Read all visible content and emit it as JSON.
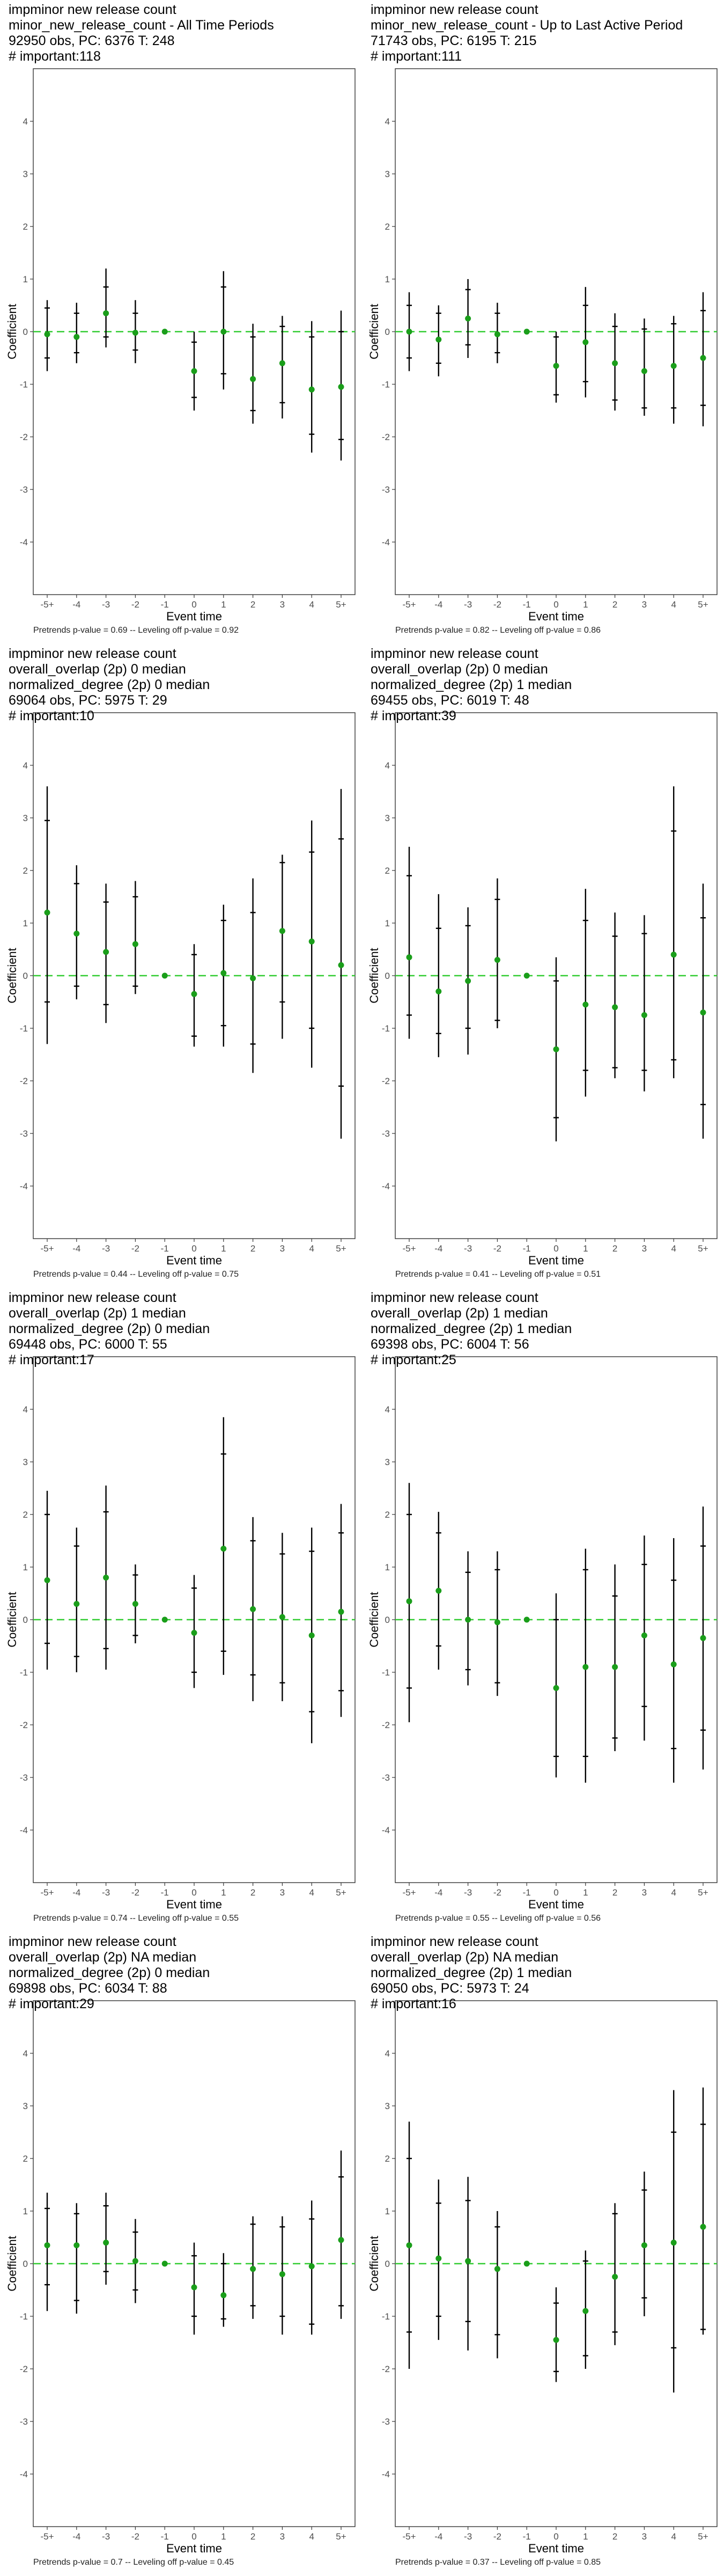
{
  "panels": [
    {
      "title_lines": [
        "impminor new release count",
        "minor_new_release_count - All Time Periods",
        "92950 obs, PC: 6376 T: 248",
        "# important:118"
      ],
      "pvalues": "Pretrends p-value = 0.69 -- Leveling off p-value = 0.92"
    },
    {
      "title_lines": [
        "impminor new release count",
        "minor_new_release_count - Up to Last Active Period",
        "71743 obs, PC: 6195 T: 215",
        "# important:111"
      ],
      "pvalues": "Pretrends p-value = 0.82 -- Leveling off p-value = 0.86"
    },
    {
      "title_lines": [
        "impminor new release count",
        "overall_overlap (2p) 0 median",
        "normalized_degree (2p) 0 median",
        "69064 obs, PC: 5975 T: 29",
        "# important:10"
      ],
      "pvalues": "Pretrends p-value = 0.44 -- Leveling off p-value = 0.75"
    },
    {
      "title_lines": [
        "impminor new release count",
        "overall_overlap (2p) 0 median",
        "normalized_degree (2p) 1 median",
        "69455 obs, PC: 6019 T: 48",
        "# important:39"
      ],
      "pvalues": "Pretrends p-value = 0.41 -- Leveling off p-value = 0.51"
    },
    {
      "title_lines": [
        "impminor new release count",
        "overall_overlap (2p) 1 median",
        "normalized_degree (2p) 0 median",
        "69448 obs, PC: 6000 T: 55",
        "# important:17"
      ],
      "pvalues": "Pretrends p-value = 0.74 -- Leveling off p-value = 0.55"
    },
    {
      "title_lines": [
        "impminor new release count",
        "overall_overlap (2p) 1 median",
        "normalized_degree (2p) 1 median",
        "69398 obs, PC: 6004 T: 56",
        "# important:25"
      ],
      "pvalues": "Pretrends p-value = 0.55 -- Leveling off p-value = 0.56"
    },
    {
      "title_lines": [
        "impminor new release count",
        "overall_overlap (2p) NA median",
        "normalized_degree (2p) 0 median",
        "69898 obs, PC: 6034 T: 88",
        "# important:29"
      ],
      "pvalues": "Pretrends p-value = 0.7 -- Leveling off p-value = 0.45"
    },
    {
      "title_lines": [
        "impminor new release count",
        "overall_overlap (2p) NA median",
        "normalized_degree (2p) 1 median",
        "69050 obs, PC: 5973 T: 24",
        "# important:16"
      ],
      "pvalues": "Pretrends p-value = 0.37 -- Leveling off p-value = 0.85"
    }
  ],
  "colors": {
    "point": "#1a9e1a",
    "zero_line": "#33cc33",
    "error_bar": "#000000",
    "panel_border": "#333333",
    "tick_text": "#4d4d4d"
  },
  "chart_data": [
    {
      "type": "scatter",
      "xlabel": "Event time",
      "ylabel": "Coefficient",
      "ylim": [
        -5,
        5
      ],
      "yticks": [
        -4,
        -3,
        -2,
        -1,
        0,
        1,
        2,
        3,
        4
      ],
      "categories": [
        "-5+",
        "-4",
        "-3",
        "-2",
        "-1",
        "0",
        "1",
        "2",
        "3",
        "4",
        "5+"
      ],
      "estimate": [
        -0.05,
        -0.1,
        0.35,
        -0.02,
        0.0,
        -0.75,
        0.0,
        -0.9,
        -0.6,
        -1.1,
        -1.05
      ],
      "ci95_low": [
        -0.75,
        -0.6,
        -0.3,
        -0.6,
        0.0,
        -1.5,
        -1.1,
        -1.75,
        -1.65,
        -2.3,
        -2.45
      ],
      "ci95_high": [
        0.6,
        0.55,
        1.2,
        0.6,
        0.0,
        0.0,
        1.15,
        0.15,
        0.3,
        0.2,
        0.4
      ],
      "ci90_low": [
        -0.5,
        -0.4,
        -0.1,
        -0.35,
        0.0,
        -1.25,
        -0.8,
        -1.5,
        -1.35,
        -1.95,
        -2.05
      ],
      "ci90_high": [
        0.45,
        0.35,
        0.85,
        0.35,
        0.0,
        -0.2,
        0.85,
        -0.1,
        0.1,
        -0.1,
        0.0
      ]
    },
    {
      "type": "scatter",
      "xlabel": "Event time",
      "ylabel": "Coefficient",
      "ylim": [
        -5,
        5
      ],
      "yticks": [
        -4,
        -3,
        -2,
        -1,
        0,
        1,
        2,
        3,
        4
      ],
      "categories": [
        "-5+",
        "-4",
        "-3",
        "-2",
        "-1",
        "0",
        "1",
        "2",
        "3",
        "4",
        "5+"
      ],
      "estimate": [
        0.0,
        -0.15,
        0.25,
        -0.05,
        0.0,
        -0.65,
        -0.2,
        -0.6,
        -0.75,
        -0.65,
        -0.5
      ],
      "ci95_low": [
        -0.75,
        -0.85,
        -0.5,
        -0.6,
        0.0,
        -1.35,
        -1.25,
        -1.5,
        -1.6,
        -1.75,
        -1.8
      ],
      "ci95_high": [
        0.75,
        0.5,
        1.0,
        0.55,
        0.0,
        0.0,
        0.85,
        0.35,
        0.25,
        0.3,
        0.75
      ],
      "ci90_low": [
        -0.5,
        -0.6,
        -0.25,
        -0.4,
        0.0,
        -1.2,
        -0.95,
        -1.3,
        -1.45,
        -1.45,
        -1.4
      ],
      "ci90_high": [
        0.5,
        0.35,
        0.8,
        0.35,
        0.0,
        -0.1,
        0.5,
        0.1,
        0.05,
        0.15,
        0.4
      ]
    },
    {
      "type": "scatter",
      "xlabel": "Event time",
      "ylabel": "Coefficient",
      "ylim": [
        -5,
        5
      ],
      "yticks": [
        -4,
        -3,
        -2,
        -1,
        0,
        1,
        2,
        3,
        4
      ],
      "categories": [
        "-5+",
        "-4",
        "-3",
        "-2",
        "-1",
        "0",
        "1",
        "2",
        "3",
        "4",
        "5+"
      ],
      "estimate": [
        1.2,
        0.8,
        0.45,
        0.6,
        0.0,
        -0.35,
        0.05,
        -0.05,
        0.85,
        0.65,
        0.2
      ],
      "ci95_low": [
        -1.3,
        -0.45,
        -0.9,
        -0.35,
        0.0,
        -1.35,
        -1.35,
        -1.85,
        -1.2,
        -1.75,
        -3.1
      ],
      "ci95_high": [
        3.6,
        2.1,
        1.75,
        1.8,
        0.0,
        0.6,
        1.35,
        1.85,
        2.3,
        2.95,
        3.55
      ],
      "ci90_low": [
        -0.5,
        -0.2,
        -0.55,
        -0.2,
        0.0,
        -1.15,
        -0.95,
        -1.3,
        -0.5,
        -1.0,
        -2.1
      ],
      "ci90_high": [
        2.95,
        1.75,
        1.4,
        1.5,
        0.0,
        0.4,
        1.05,
        1.2,
        2.15,
        2.35,
        2.6
      ]
    },
    {
      "type": "scatter",
      "xlabel": "Event time",
      "ylabel": "Coefficient",
      "ylim": [
        -5,
        5
      ],
      "yticks": [
        -4,
        -3,
        -2,
        -1,
        0,
        1,
        2,
        3,
        4
      ],
      "categories": [
        "-5+",
        "-4",
        "-3",
        "-2",
        "-1",
        "0",
        "1",
        "2",
        "3",
        "4",
        "5+"
      ],
      "estimate": [
        0.35,
        -0.3,
        -0.1,
        0.3,
        0.0,
        -1.4,
        -0.55,
        -0.6,
        -0.75,
        0.4,
        -0.7
      ],
      "ci95_low": [
        -1.2,
        -1.55,
        -1.5,
        -1.0,
        0.0,
        -3.15,
        -2.3,
        -1.95,
        -2.2,
        -1.95,
        -3.1
      ],
      "ci95_high": [
        2.45,
        1.55,
        1.3,
        1.85,
        0.0,
        0.35,
        1.65,
        1.2,
        1.15,
        3.6,
        1.75
      ],
      "ci90_low": [
        -0.75,
        -1.1,
        -1.0,
        -0.85,
        0.0,
        -2.7,
        -1.8,
        -1.75,
        -1.8,
        -1.6,
        -2.45
      ],
      "ci90_high": [
        1.9,
        0.9,
        0.95,
        1.45,
        0.0,
        -0.1,
        1.05,
        0.75,
        0.8,
        2.75,
        1.1
      ]
    },
    {
      "type": "scatter",
      "xlabel": "Event time",
      "ylabel": "Coefficient",
      "ylim": [
        -5,
        5
      ],
      "yticks": [
        -4,
        -3,
        -2,
        -1,
        0,
        1,
        2,
        3,
        4
      ],
      "categories": [
        "-5+",
        "-4",
        "-3",
        "-2",
        "-1",
        "0",
        "1",
        "2",
        "3",
        "4",
        "5+"
      ],
      "estimate": [
        0.75,
        0.3,
        0.8,
        0.3,
        0.0,
        -0.25,
        1.35,
        0.2,
        0.05,
        -0.3,
        0.15
      ],
      "ci95_low": [
        -0.95,
        -1.0,
        -0.95,
        -0.45,
        0.0,
        -1.3,
        -1.05,
        -1.55,
        -1.55,
        -2.35,
        -1.85
      ],
      "ci95_high": [
        2.45,
        1.75,
        2.55,
        1.05,
        0.0,
        0.85,
        3.85,
        1.95,
        1.65,
        1.75,
        2.2
      ],
      "ci90_low": [
        -0.45,
        -0.7,
        -0.55,
        -0.3,
        0.0,
        -1.0,
        -0.6,
        -1.05,
        -1.2,
        -1.75,
        -1.35
      ],
      "ci90_high": [
        2.0,
        1.4,
        2.05,
        0.85,
        0.0,
        0.6,
        3.15,
        1.5,
        1.25,
        1.3,
        1.65
      ]
    },
    {
      "type": "scatter",
      "xlabel": "Event time",
      "ylabel": "Coefficient",
      "ylim": [
        -5,
        5
      ],
      "yticks": [
        -4,
        -3,
        -2,
        -1,
        0,
        1,
        2,
        3,
        4
      ],
      "categories": [
        "-5+",
        "-4",
        "-3",
        "-2",
        "-1",
        "0",
        "1",
        "2",
        "3",
        "4",
        "5+"
      ],
      "estimate": [
        0.35,
        0.55,
        0.0,
        -0.05,
        0.0,
        -1.3,
        -0.9,
        -0.9,
        -0.3,
        -0.85,
        -0.35
      ],
      "ci95_low": [
        -1.95,
        -0.95,
        -1.25,
        -1.45,
        0.0,
        -3.0,
        -3.1,
        -2.5,
        -2.3,
        -3.1,
        -2.85
      ],
      "ci95_high": [
        2.6,
        2.05,
        1.3,
        1.3,
        0.0,
        0.5,
        1.35,
        1.05,
        1.6,
        1.55,
        2.15
      ],
      "ci90_low": [
        -1.3,
        -0.5,
        -0.95,
        -1.2,
        0.0,
        -2.6,
        -2.6,
        -2.25,
        -1.65,
        -2.45,
        -2.1
      ],
      "ci90_high": [
        2.0,
        1.65,
        0.9,
        0.95,
        0.0,
        0.0,
        0.95,
        0.45,
        1.05,
        0.75,
        1.4
      ]
    },
    {
      "type": "scatter",
      "xlabel": "Event time",
      "ylabel": "Coefficient",
      "ylim": [
        -5,
        5
      ],
      "yticks": [
        -4,
        -3,
        -2,
        -1,
        0,
        1,
        2,
        3,
        4
      ],
      "categories": [
        "-5+",
        "-4",
        "-3",
        "-2",
        "-1",
        "0",
        "1",
        "2",
        "3",
        "4",
        "5+"
      ],
      "estimate": [
        0.35,
        0.35,
        0.4,
        0.05,
        0.0,
        -0.45,
        -0.6,
        -0.1,
        -0.2,
        -0.05,
        0.45
      ],
      "ci95_low": [
        -0.9,
        -0.95,
        -0.4,
        -0.75,
        0.0,
        -1.35,
        -1.2,
        -1.05,
        -1.35,
        -1.35,
        -1.05
      ],
      "ci95_high": [
        1.35,
        1.15,
        1.35,
        0.85,
        0.0,
        0.4,
        0.2,
        0.9,
        0.9,
        1.2,
        2.15
      ],
      "ci90_low": [
        -0.4,
        -0.7,
        -0.15,
        -0.5,
        0.0,
        -1.0,
        -1.05,
        -0.8,
        -1.0,
        -1.15,
        -0.8
      ],
      "ci90_high": [
        1.05,
        0.95,
        1.1,
        0.6,
        0.0,
        0.15,
        0.0,
        0.75,
        0.7,
        0.85,
        1.65
      ]
    },
    {
      "type": "scatter",
      "xlabel": "Event time",
      "ylabel": "Coefficient",
      "ylim": [
        -5,
        5
      ],
      "yticks": [
        -4,
        -3,
        -2,
        -1,
        0,
        1,
        2,
        3,
        4
      ],
      "categories": [
        "-5+",
        "-4",
        "-3",
        "-2",
        "-1",
        "0",
        "1",
        "2",
        "3",
        "4",
        "5+"
      ],
      "estimate": [
        0.35,
        0.1,
        0.05,
        -0.1,
        0.0,
        -1.45,
        -0.9,
        -0.25,
        0.35,
        0.4,
        0.7
      ],
      "ci95_low": [
        -2.0,
        -1.45,
        -1.65,
        -1.8,
        0.0,
        -2.25,
        -2.0,
        -1.55,
        -1.0,
        -2.45,
        -1.35
      ],
      "ci95_high": [
        2.7,
        1.6,
        1.65,
        1.0,
        0.0,
        -0.45,
        0.25,
        1.15,
        1.75,
        3.3,
        3.35
      ],
      "ci90_low": [
        -1.3,
        -1.0,
        -1.1,
        -1.35,
        0.0,
        -2.05,
        -1.75,
        -1.3,
        -0.65,
        -1.6,
        -1.25
      ],
      "ci90_high": [
        2.0,
        1.15,
        1.2,
        0.7,
        0.0,
        -0.75,
        0.05,
        0.95,
        1.4,
        2.5,
        2.65
      ]
    }
  ]
}
